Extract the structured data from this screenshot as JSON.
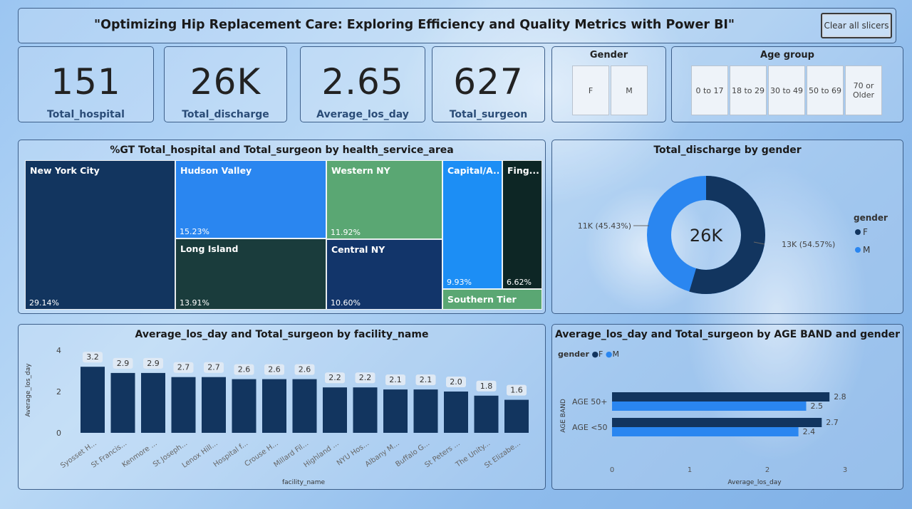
{
  "header": {
    "title": "\"Optimizing Hip Replacement Care: Exploring Efficiency and Quality Metrics with Power BI\"",
    "clear_label": "Clear all slicers"
  },
  "cards": [
    {
      "value": "151",
      "label": "Total_hospital"
    },
    {
      "value": "26K",
      "label": "Total_discharge"
    },
    {
      "value": "2.65",
      "label": "Average_los_day"
    },
    {
      "value": "627",
      "label": "Total_surgeon"
    }
  ],
  "gender_slicer": {
    "title": "Gender",
    "options": [
      "F",
      "M"
    ]
  },
  "age_slicer": {
    "title": "Age group",
    "options": [
      "0 to 17",
      "18 to 29",
      "30 to 49",
      "50 to 69",
      "70 or Older"
    ]
  },
  "treemap": {
    "title": "%GT Total_hospital and Total_surgeon by health_service_area",
    "items": [
      {
        "name": "New York City",
        "pct": "29.14%",
        "color": "#12355f"
      },
      {
        "name": "Hudson Valley",
        "pct": "15.23%",
        "color": "#2a86f0"
      },
      {
        "name": "Long Island",
        "pct": "13.91%",
        "color": "#1a3c3c"
      },
      {
        "name": "Western NY",
        "pct": "11.92%",
        "color": "#5aa773"
      },
      {
        "name": "Central NY",
        "pct": "10.60%",
        "color": "#12356a"
      },
      {
        "name": "Capital/A...",
        "pct": "9.93%",
        "color": "#1c8ef5"
      },
      {
        "name": "Fing...",
        "pct": "6.62%",
        "color": "#0d2625"
      },
      {
        "name": "Southern Tier",
        "pct": "",
        "color": "#5aa773"
      }
    ]
  },
  "donut": {
    "title": "Total_discharge by gender",
    "center": "26K",
    "label_f": "13K (54.57%)",
    "label_m": "11K (45.43%)",
    "legend_title": "gender",
    "legend": [
      "F",
      "M"
    ],
    "colors": {
      "F": "#12355f",
      "M": "#2a86f0"
    }
  },
  "facility_chart": {
    "title": "Average_los_day and Total_surgeon by facility_name"
  },
  "ageband_chart": {
    "title": "Average_los_day and Total_surgeon by AGE BAND and gender",
    "legend_title": "gender",
    "legend": [
      "F",
      "M"
    ]
  },
  "chart_data": [
    {
      "type": "pie",
      "title": "Total_discharge by gender",
      "categories": [
        "F",
        "M"
      ],
      "values": [
        54.57,
        45.43
      ],
      "labels": [
        "13K (54.57%)",
        "11K (45.43%)"
      ],
      "legend": "right"
    },
    {
      "type": "bar",
      "title": "Average_los_day and Total_surgeon by facility_name",
      "xlabel": "facility_name",
      "ylabel": "Average_los_day",
      "ylim": [
        0,
        4
      ],
      "yticks": [
        "0",
        "2",
        "4"
      ],
      "categories": [
        "Syosset H...",
        "St Francis...",
        "Kenmore ...",
        "St Joseph...",
        "Lenox Hill...",
        "Hospital f...",
        "Crouse H...",
        "Millard Fil...",
        "Highland ...",
        "NYU Hos...",
        "Albany M...",
        "Buffalo G...",
        "St Peters ...",
        "The Unity...",
        "St Elizabe..."
      ],
      "values": [
        3.2,
        2.9,
        2.9,
        2.7,
        2.7,
        2.6,
        2.6,
        2.6,
        2.2,
        2.2,
        2.1,
        2.1,
        2.0,
        1.8,
        1.6
      ],
      "value_labels": [
        "3.2",
        "2.9",
        "2.9",
        "2.7",
        "2.7",
        "2.6",
        "2.6",
        "2.6",
        "2.2",
        "2.2",
        "2.1",
        "2.1",
        "2.0",
        "1.8",
        "1.6"
      ],
      "color": "#12355f"
    },
    {
      "type": "bar",
      "orientation": "horizontal",
      "title": "Average_los_day and Total_surgeon by AGE BAND and gender",
      "xlabel": "Average_los_day",
      "ylabel": "AGE BAND",
      "xlim": [
        0,
        3
      ],
      "xticks": [
        "0",
        "1",
        "2",
        "3"
      ],
      "categories": [
        "AGE 50+",
        "AGE <50"
      ],
      "series": [
        {
          "name": "F",
          "values": [
            2.8,
            2.7
          ],
          "value_labels": [
            "2.8",
            "2.7"
          ],
          "color": "#12355f"
        },
        {
          "name": "M",
          "values": [
            2.5,
            2.4
          ],
          "value_labels": [
            "2.5",
            "2.4"
          ],
          "color": "#2a86f0"
        }
      ],
      "legend": "top-left"
    }
  ]
}
